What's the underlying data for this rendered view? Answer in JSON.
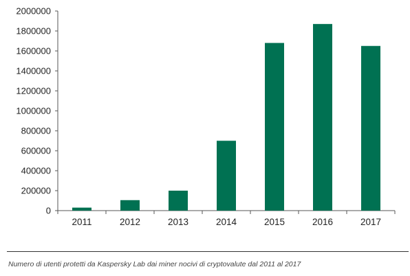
{
  "chart_data": {
    "type": "bar",
    "categories": [
      "2011",
      "2012",
      "2013",
      "2014",
      "2015",
      "2016",
      "2017"
    ],
    "values": [
      30000,
      105000,
      200000,
      700000,
      1680000,
      1870000,
      1650000
    ],
    "ylim": [
      0,
      2000000
    ],
    "yticks": [
      "0",
      "200000",
      "400000",
      "600000",
      "800000",
      "1000000",
      "1200000",
      "1400000",
      "1600000",
      "1800000",
      "2000000"
    ],
    "bar_color": "#007152",
    "grid": false,
    "legend": "none"
  },
  "caption": "Numero di utenti protetti da Kaspersky Lab dai miner nocivi di cryptovalute dal 2011 al 2017"
}
